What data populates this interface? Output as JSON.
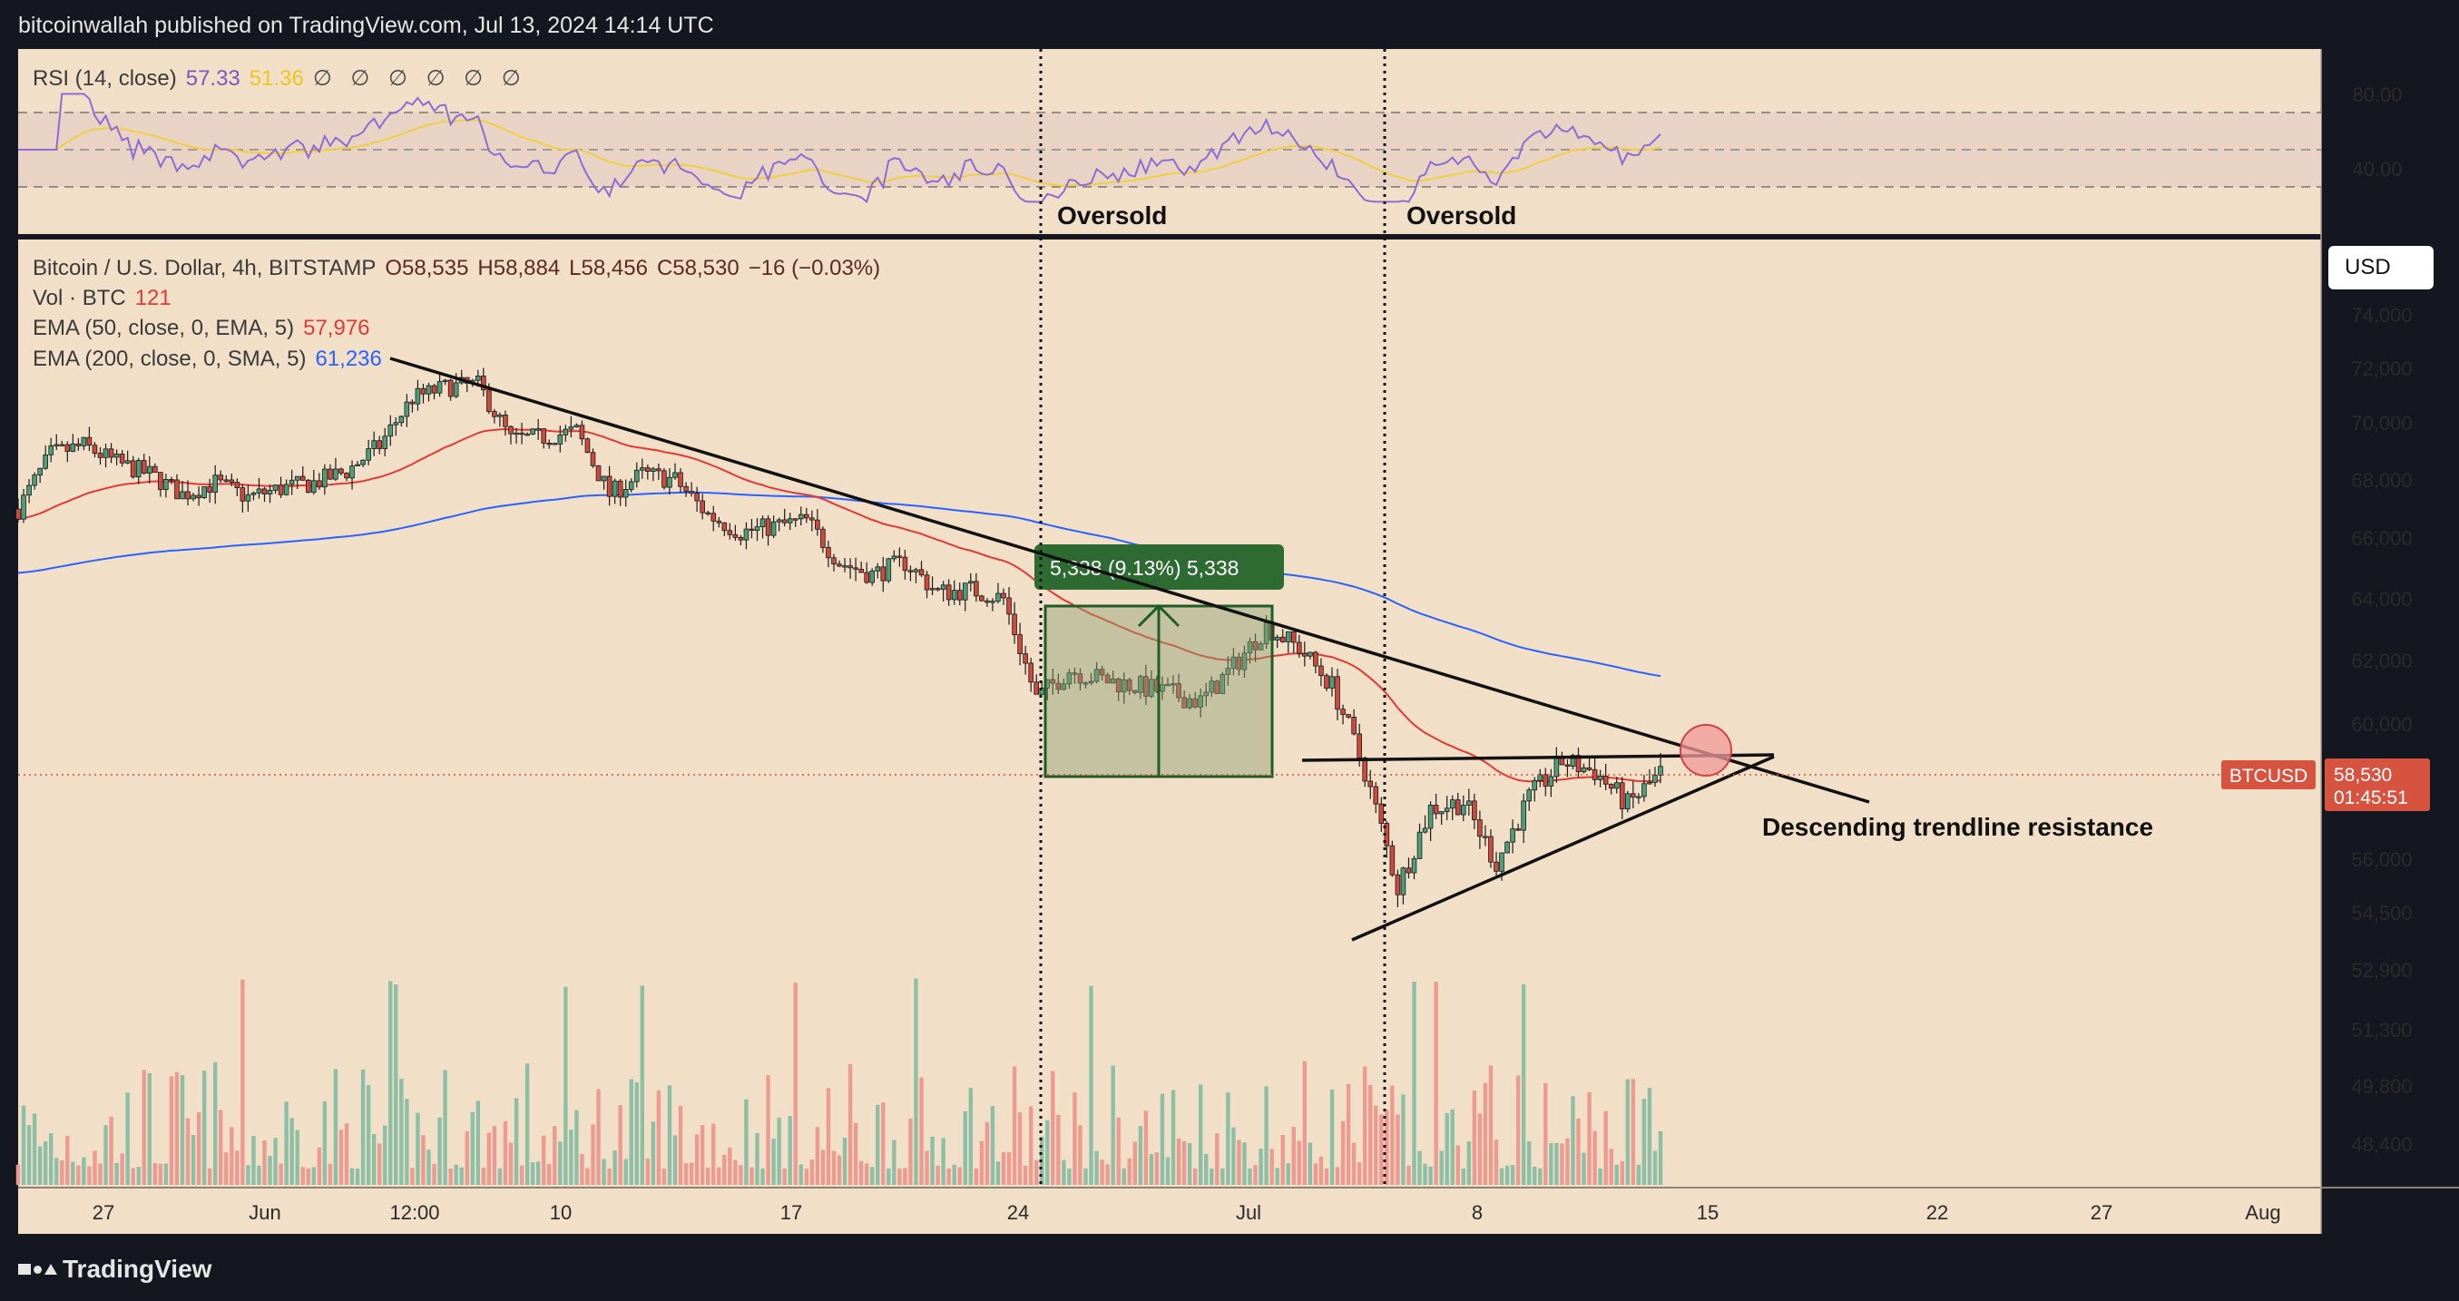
{
  "header": {
    "publish_line": "bitcoinwallah published on TradingView.com, Jul 13, 2024 14:14 UTC"
  },
  "footer": {
    "brand": "TradingView"
  },
  "currency_button": "USD",
  "rsi_legend": {
    "label": "RSI (14, close)",
    "rsi_value": "57.33",
    "ma_value": "51.36",
    "icons": "∅ ∅ ∅ ∅ ∅ ∅"
  },
  "price_legend": {
    "symbol": "Bitcoin / U.S. Dollar, 4h, BITSTAMP",
    "open": "O58,535",
    "high": "H58,884",
    "low": "L58,456",
    "close": "C58,530",
    "change": "−16 (−0.03%)",
    "vol_label": "Vol · BTC",
    "vol_value": "121",
    "ema50_label": "EMA (50, close, 0, EMA, 5)",
    "ema50_value": "57,976",
    "ema200_label": "EMA (200, close, 0, SMA, 5)",
    "ema200_value": "61,236"
  },
  "colors": {
    "pane_bg": "#f2dfc8",
    "up_candle": "#4e9e7a",
    "down_candle": "#cc4a3e",
    "volume_up": "#8dbfa7",
    "volume_down": "#ed9a90",
    "ema50": "#e53935",
    "ema200": "#2962ff",
    "rsi": "#8e6bd6",
    "rsi_ma": "#f0d040",
    "measure_box": "#2e6b33",
    "price_tag": "#d6543f"
  },
  "chart_data": {
    "type": "candlestick",
    "symbol": "BTCUSD",
    "timeframe": "4h",
    "x_labels": [
      "27",
      "Jun",
      "12:00",
      "10",
      "17",
      "24",
      "Jul",
      "8",
      "15",
      "22",
      "27",
      "Aug"
    ],
    "y_ticks": [
      "74,000",
      "72,000",
      "70,000",
      "68,000",
      "66,000",
      "64,000",
      "62,000",
      "60,000",
      "56,000",
      "54,500",
      "52,900",
      "51,300",
      "49,800",
      "48,400"
    ],
    "rsi_ticks": [
      "80.00",
      "40.00"
    ],
    "rsi_levels": [
      70,
      50,
      30
    ],
    "last_price": {
      "symbol": "BTCUSD",
      "price": "58,530",
      "countdown": "01:45:51"
    },
    "price_path": [
      [
        "2024-05-24",
        67000
      ],
      [
        "2024-05-25",
        68900
      ],
      [
        "2024-05-26",
        69200
      ],
      [
        "2024-05-27",
        68600
      ],
      [
        "2024-05-28",
        68200
      ],
      [
        "2024-05-29",
        67500
      ],
      [
        "2024-05-30",
        67900
      ],
      [
        "2024-05-31",
        67400
      ],
      [
        "2024-06-01",
        67700
      ],
      [
        "2024-06-02",
        67900
      ],
      [
        "2024-06-03",
        68300
      ],
      [
        "2024-06-04",
        69200
      ],
      [
        "2024-06-05",
        70900
      ],
      [
        "2024-06-06",
        71300
      ],
      [
        "2024-06-07",
        71400
      ],
      [
        "2024-06-08",
        69400
      ],
      [
        "2024-06-09",
        69500
      ],
      [
        "2024-06-10",
        69700
      ],
      [
        "2024-06-11",
        67500
      ],
      [
        "2024-06-12",
        68200
      ],
      [
        "2024-06-13",
        68000
      ],
      [
        "2024-06-14",
        66800
      ],
      [
        "2024-06-15",
        66200
      ],
      [
        "2024-06-16",
        66400
      ],
      [
        "2024-06-17",
        66600
      ],
      [
        "2024-06-18",
        65200
      ],
      [
        "2024-06-19",
        64800
      ],
      [
        "2024-06-20",
        65200
      ],
      [
        "2024-06-21",
        64200
      ],
      [
        "2024-06-22",
        64300
      ],
      [
        "2024-06-23",
        64000
      ],
      [
        "2024-06-24",
        60800
      ],
      [
        "2024-06-25",
        61700
      ],
      [
        "2024-06-26",
        61400
      ],
      [
        "2024-06-27",
        61200
      ],
      [
        "2024-06-28",
        61000
      ],
      [
        "2024-06-29",
        60700
      ],
      [
        "2024-06-30",
        61800
      ],
      [
        "2024-07-01",
        63100
      ],
      [
        "2024-07-02",
        62400
      ],
      [
        "2024-07-03",
        61200
      ],
      [
        "2024-07-04",
        58600
      ],
      [
        "2024-07-05",
        55200
      ],
      [
        "2024-07-06",
        57500
      ],
      [
        "2024-07-07",
        57700
      ],
      [
        "2024-07-08",
        55900
      ],
      [
        "2024-07-09",
        57800
      ],
      [
        "2024-07-10",
        58900
      ],
      [
        "2024-07-11",
        58600
      ],
      [
        "2024-07-12",
        57600
      ],
      [
        "2024-07-13",
        58530
      ]
    ],
    "annotations": {
      "measure_label": "5,338 (9.13%) 5,338",
      "oversold_1": "Oversold",
      "oversold_2": "Oversold",
      "trendline_label": "Descending trendline resistance"
    }
  }
}
